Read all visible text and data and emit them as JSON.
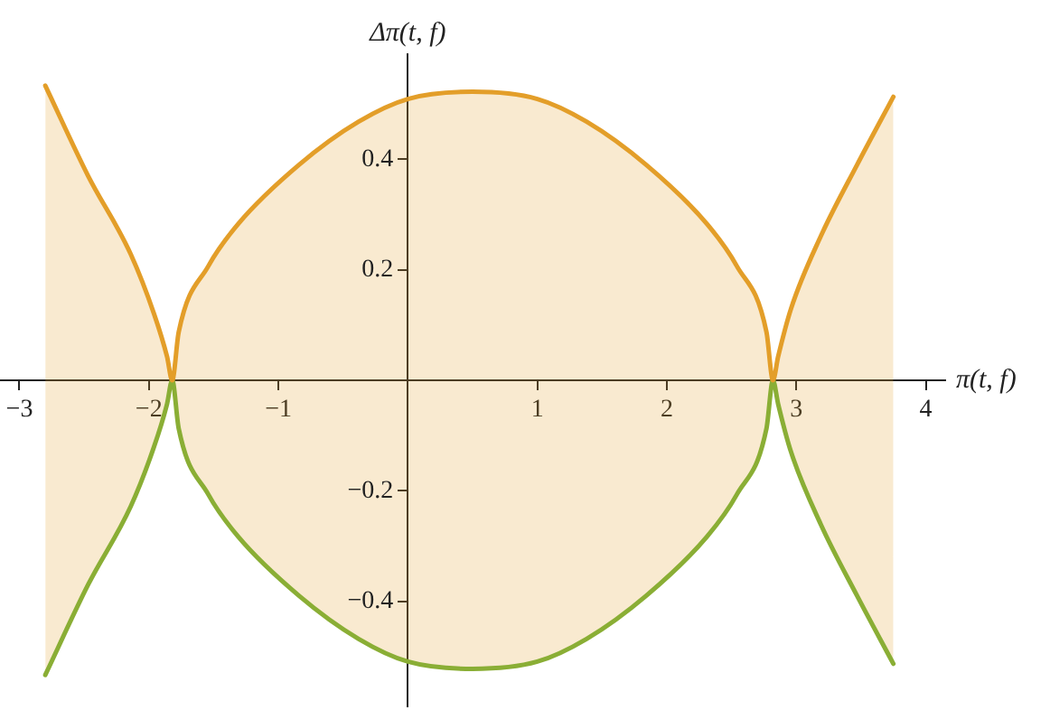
{
  "chart_data": {
    "type": "line",
    "xlabel": "π(t, f)",
    "ylabel": "Δπ(t, f)",
    "x": [
      -2.8,
      -2.47,
      -2.14,
      -1.96,
      -1.86,
      -1.82,
      -1.77,
      -1.54,
      -1.31,
      -0.84,
      -0.38,
      0,
      0.5,
      1,
      1.38,
      1.84,
      2.31,
      2.54,
      2.77,
      2.82,
      2.86,
      2.96,
      3.19,
      3.47,
      3.75
    ],
    "series": [
      {
        "color": "#e39e29",
        "values": [
          0.533,
          0.37,
          0.228,
          0.12,
          0.043,
          0,
          0.087,
          0.207,
          0.283,
          0.39,
          0.468,
          0.509,
          0.522,
          0.509,
          0.468,
          0.39,
          0.283,
          0.207,
          0.087,
          0,
          0.043,
          0.13,
          0.261,
          0.39,
          0.513
        ],
        "lower": [
          -0.533,
          -0.37,
          -0.228,
          -0.12,
          -0.043,
          0,
          -0.087,
          -0.207,
          -0.283,
          -0.39,
          -0.468,
          -0.509,
          -0.522,
          -0.509,
          -0.468,
          -0.39,
          -0.283,
          -0.207,
          -0.087,
          0,
          -0.043,
          -0.13,
          -0.261,
          -0.39,
          -0.513
        ],
        "upper": [
          0.533,
          0.37,
          0.228,
          0.12,
          0.043,
          0,
          0.087,
          0.207,
          0.283,
          0.39,
          0.468,
          0.509,
          0.522,
          0.509,
          0.468,
          0.39,
          0.283,
          0.207,
          0.087,
          0,
          0.043,
          0.13,
          0.261,
          0.39,
          0.513
        ]
      },
      {
        "color": "#8aae35",
        "values": [
          -0.533,
          -0.37,
          -0.228,
          -0.12,
          -0.043,
          0,
          -0.087,
          -0.207,
          -0.283,
          -0.39,
          -0.468,
          -0.509,
          -0.522,
          -0.509,
          -0.468,
          -0.39,
          -0.283,
          -0.207,
          -0.087,
          0,
          -0.043,
          -0.13,
          -0.261,
          -0.39,
          -0.513
        ]
      }
    ],
    "xlim": [
      -3.15,
      4.15
    ],
    "ylim": [
      -0.59,
      0.59
    ],
    "xticks": [
      -3,
      -2,
      -1,
      1,
      2,
      3,
      4
    ],
    "yticks": [
      -0.4,
      -0.2,
      0.2,
      0.4
    ],
    "grid": false,
    "legend": false,
    "marker": "none",
    "line_style": "solid"
  }
}
